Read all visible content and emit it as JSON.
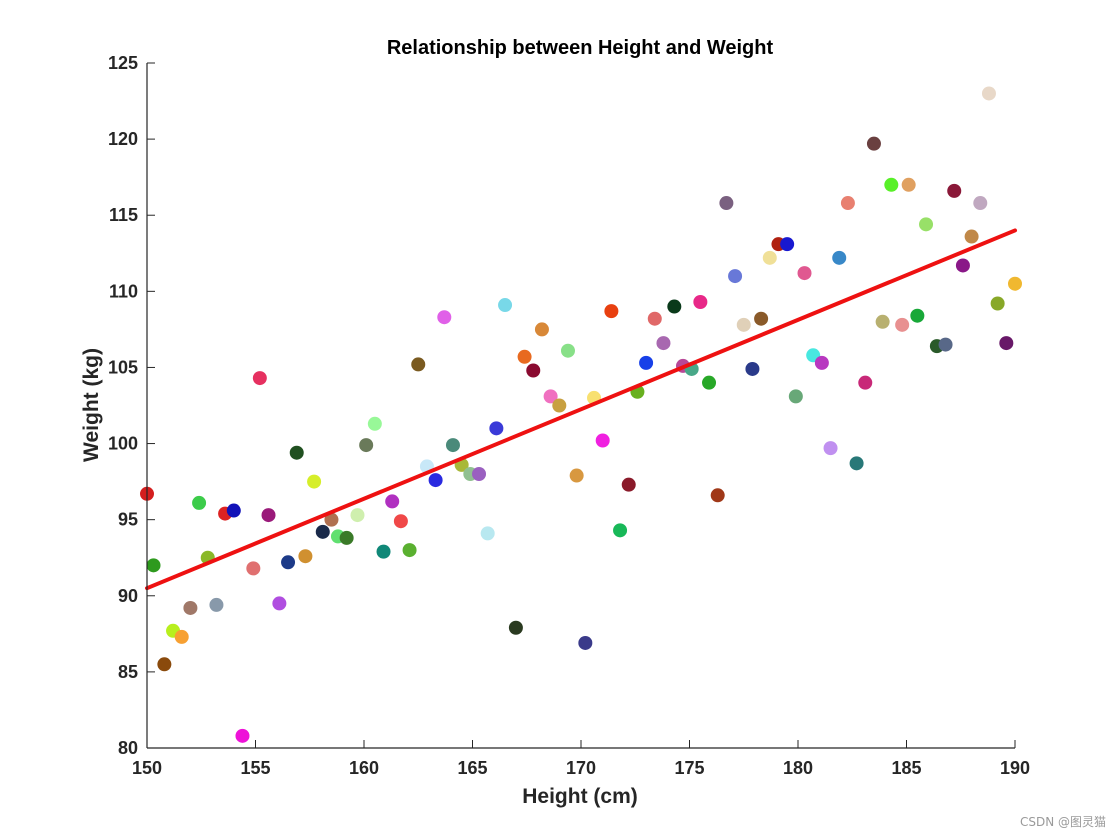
{
  "chart_data": {
    "type": "scatter",
    "title": "Relationship between Height and Weight",
    "xlabel": "Height (cm)",
    "ylabel": "Weight (kg)",
    "xlim": [
      150,
      190
    ],
    "ylim": [
      80,
      125
    ],
    "xticks": [
      150,
      155,
      160,
      165,
      170,
      175,
      180,
      185,
      190
    ],
    "yticks": [
      80,
      85,
      90,
      95,
      100,
      105,
      110,
      115,
      120,
      125
    ],
    "grid": false,
    "regression_line": {
      "color": "#ee1111",
      "start": [
        150,
        90.5
      ],
      "end": [
        190,
        114.0
      ]
    },
    "points": [
      {
        "x": 150.0,
        "y": 96.7,
        "color": "#d41e1e"
      },
      {
        "x": 150.3,
        "y": 92.0,
        "color": "#2e9a1e"
      },
      {
        "x": 150.8,
        "y": 85.5,
        "color": "#8a4a0c"
      },
      {
        "x": 151.2,
        "y": 87.7,
        "color": "#b8ef1e"
      },
      {
        "x": 151.6,
        "y": 87.3,
        "color": "#f7a032"
      },
      {
        "x": 152.0,
        "y": 89.2,
        "color": "#a07868"
      },
      {
        "x": 152.4,
        "y": 96.1,
        "color": "#3ccc4a"
      },
      {
        "x": 152.8,
        "y": 92.5,
        "color": "#8ab828"
      },
      {
        "x": 153.2,
        "y": 89.4,
        "color": "#8899aa"
      },
      {
        "x": 153.6,
        "y": 95.4,
        "color": "#dd2222"
      },
      {
        "x": 154.0,
        "y": 95.6,
        "color": "#1212b8"
      },
      {
        "x": 154.4,
        "y": 80.8,
        "color": "#ee12d8"
      },
      {
        "x": 154.9,
        "y": 91.8,
        "color": "#e07070"
      },
      {
        "x": 155.2,
        "y": 104.3,
        "color": "#e63060"
      },
      {
        "x": 155.6,
        "y": 95.3,
        "color": "#9a1a7a"
      },
      {
        "x": 156.1,
        "y": 89.5,
        "color": "#b04ee0"
      },
      {
        "x": 156.5,
        "y": 92.2,
        "color": "#1c3a88"
      },
      {
        "x": 156.9,
        "y": 99.4,
        "color": "#205020"
      },
      {
        "x": 157.3,
        "y": 92.6,
        "color": "#d09030"
      },
      {
        "x": 157.7,
        "y": 97.5,
        "color": "#d6ee2a"
      },
      {
        "x": 158.1,
        "y": 94.2,
        "color": "#1a2a4a"
      },
      {
        "x": 158.5,
        "y": 95.0,
        "color": "#b07050"
      },
      {
        "x": 158.8,
        "y": 93.9,
        "color": "#60e070"
      },
      {
        "x": 159.2,
        "y": 93.8,
        "color": "#3a7a28"
      },
      {
        "x": 159.7,
        "y": 95.3,
        "color": "#cfefae"
      },
      {
        "x": 160.1,
        "y": 99.9,
        "color": "#6a7a5a"
      },
      {
        "x": 160.5,
        "y": 101.3,
        "color": "#98f898"
      },
      {
        "x": 160.9,
        "y": 92.9,
        "color": "#108878"
      },
      {
        "x": 161.3,
        "y": 96.2,
        "color": "#b030c0"
      },
      {
        "x": 161.7,
        "y": 94.9,
        "color": "#f04848"
      },
      {
        "x": 162.1,
        "y": 93.0,
        "color": "#5ab030"
      },
      {
        "x": 162.5,
        "y": 105.2,
        "color": "#7a5a20"
      },
      {
        "x": 162.9,
        "y": 98.5,
        "color": "#c8e8f8"
      },
      {
        "x": 163.3,
        "y": 97.6,
        "color": "#2a2ae0"
      },
      {
        "x": 163.7,
        "y": 108.3,
        "color": "#e060e8"
      },
      {
        "x": 164.1,
        "y": 99.9,
        "color": "#4a8a7a"
      },
      {
        "x": 164.5,
        "y": 98.6,
        "color": "#a8b838"
      },
      {
        "x": 164.9,
        "y": 98.0,
        "color": "#90c090"
      },
      {
        "x": 165.3,
        "y": 98.0,
        "color": "#9a60c0"
      },
      {
        "x": 165.7,
        "y": 94.1,
        "color": "#b8e8f0"
      },
      {
        "x": 166.1,
        "y": 101.0,
        "color": "#3a3ad8"
      },
      {
        "x": 166.5,
        "y": 109.1,
        "color": "#78d8e8"
      },
      {
        "x": 167.0,
        "y": 87.9,
        "color": "#2a3a20"
      },
      {
        "x": 167.4,
        "y": 105.7,
        "color": "#e86a20"
      },
      {
        "x": 167.8,
        "y": 104.8,
        "color": "#8a0a30"
      },
      {
        "x": 168.2,
        "y": 107.5,
        "color": "#d88838"
      },
      {
        "x": 168.6,
        "y": 103.1,
        "color": "#f070c0"
      },
      {
        "x": 169.0,
        "y": 102.5,
        "color": "#c8a040"
      },
      {
        "x": 169.4,
        "y": 106.1,
        "color": "#88e088"
      },
      {
        "x": 169.8,
        "y": 97.9,
        "color": "#d89840"
      },
      {
        "x": 170.2,
        "y": 86.9,
        "color": "#3a3a8a"
      },
      {
        "x": 170.6,
        "y": 103.0,
        "color": "#f8e070"
      },
      {
        "x": 171.0,
        "y": 100.2,
        "color": "#f020e0"
      },
      {
        "x": 171.4,
        "y": 108.7,
        "color": "#e84010"
      },
      {
        "x": 171.8,
        "y": 94.3,
        "color": "#18b858"
      },
      {
        "x": 172.2,
        "y": 97.3,
        "color": "#8a1a2a"
      },
      {
        "x": 172.6,
        "y": 103.4,
        "color": "#68b020"
      },
      {
        "x": 173.0,
        "y": 105.3,
        "color": "#1840e8"
      },
      {
        "x": 173.4,
        "y": 108.2,
        "color": "#e06868"
      },
      {
        "x": 173.8,
        "y": 106.6,
        "color": "#a868b0"
      },
      {
        "x": 174.3,
        "y": 109.0,
        "color": "#0a3a1a"
      },
      {
        "x": 174.7,
        "y": 105.1,
        "color": "#b84898"
      },
      {
        "x": 175.1,
        "y": 104.9,
        "color": "#48a888"
      },
      {
        "x": 175.5,
        "y": 109.3,
        "color": "#e82888"
      },
      {
        "x": 175.9,
        "y": 104.0,
        "color": "#28a828"
      },
      {
        "x": 176.3,
        "y": 96.6,
        "color": "#a03818"
      },
      {
        "x": 176.7,
        "y": 115.8,
        "color": "#7a6080"
      },
      {
        "x": 177.1,
        "y": 111.0,
        "color": "#6878d8"
      },
      {
        "x": 177.5,
        "y": 107.8,
        "color": "#e0d0b8"
      },
      {
        "x": 177.9,
        "y": 104.9,
        "color": "#2a3a8a"
      },
      {
        "x": 178.3,
        "y": 108.2,
        "color": "#8a5a2a"
      },
      {
        "x": 178.7,
        "y": 112.2,
        "color": "#f0e098"
      },
      {
        "x": 179.1,
        "y": 113.1,
        "color": "#b02010"
      },
      {
        "x": 179.5,
        "y": 113.1,
        "color": "#1818d0"
      },
      {
        "x": 179.9,
        "y": 103.1,
        "color": "#68a878"
      },
      {
        "x": 180.3,
        "y": 111.2,
        "color": "#e05890"
      },
      {
        "x": 180.7,
        "y": 105.8,
        "color": "#48e8e0"
      },
      {
        "x": 181.1,
        "y": 105.3,
        "color": "#b838c0"
      },
      {
        "x": 181.5,
        "y": 99.7,
        "color": "#c090f0"
      },
      {
        "x": 181.9,
        "y": 112.2,
        "color": "#3888c8"
      },
      {
        "x": 182.3,
        "y": 115.8,
        "color": "#e88070"
      },
      {
        "x": 182.7,
        "y": 98.7,
        "color": "#287878"
      },
      {
        "x": 183.1,
        "y": 104.0,
        "color": "#c82878"
      },
      {
        "x": 183.5,
        "y": 119.7,
        "color": "#6a4040"
      },
      {
        "x": 183.9,
        "y": 108.0,
        "color": "#b8b070"
      },
      {
        "x": 184.3,
        "y": 117.0,
        "color": "#58f028"
      },
      {
        "x": 184.8,
        "y": 107.8,
        "color": "#e89090"
      },
      {
        "x": 185.1,
        "y": 117.0,
        "color": "#e0a060"
      },
      {
        "x": 185.5,
        "y": 108.4,
        "color": "#18a838"
      },
      {
        "x": 185.9,
        "y": 114.4,
        "color": "#98e068"
      },
      {
        "x": 186.4,
        "y": 106.4,
        "color": "#2a5a2a"
      },
      {
        "x": 186.8,
        "y": 106.5,
        "color": "#586888"
      },
      {
        "x": 187.2,
        "y": 116.6,
        "color": "#8a1838"
      },
      {
        "x": 187.6,
        "y": 111.7,
        "color": "#8a1888"
      },
      {
        "x": 188.0,
        "y": 113.6,
        "color": "#c08848"
      },
      {
        "x": 188.4,
        "y": 115.8,
        "color": "#c0a8c0"
      },
      {
        "x": 188.8,
        "y": 123.0,
        "color": "#e8d8c8"
      },
      {
        "x": 189.2,
        "y": 109.2,
        "color": "#88a828"
      },
      {
        "x": 189.6,
        "y": 106.6,
        "color": "#681868"
      },
      {
        "x": 190.0,
        "y": 110.5,
        "color": "#f0b830"
      }
    ]
  },
  "watermark": "CSDN @图灵猫"
}
